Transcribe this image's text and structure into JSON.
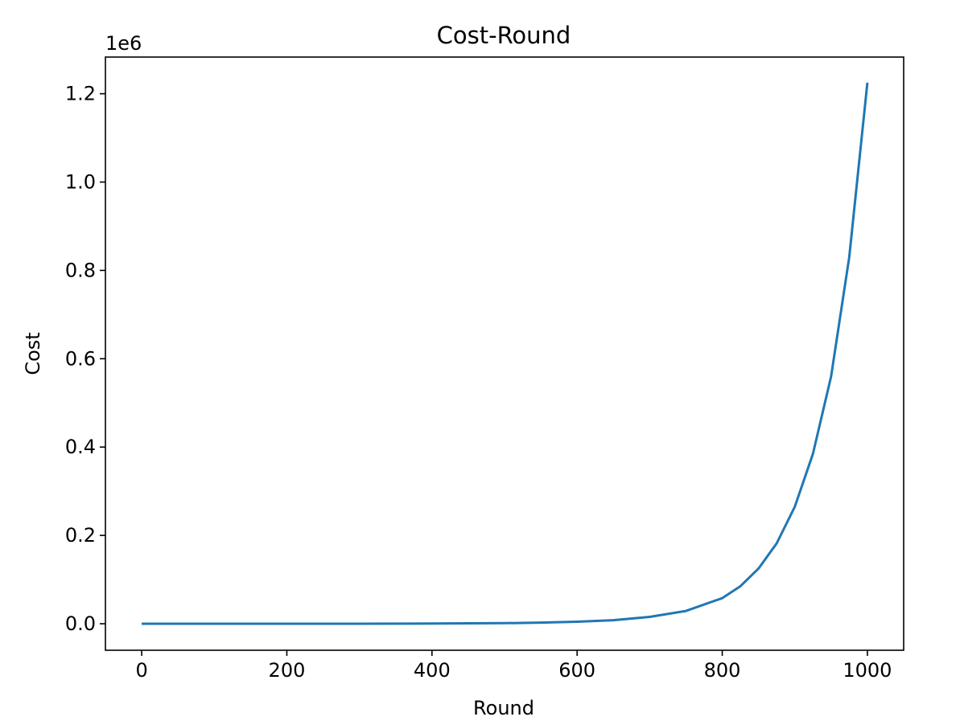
{
  "chart_data": {
    "type": "line",
    "title": "Cost-Round",
    "xlabel": "Round",
    "ylabel": "Cost",
    "y_offset_text": "1e6",
    "xlim": [
      -50,
      1050
    ],
    "ylim": [
      -0.06,
      1.283
    ],
    "x_ticks": [
      0,
      200,
      400,
      600,
      800,
      1000
    ],
    "x_tick_labels": [
      "0",
      "200",
      "400",
      "600",
      "800",
      "1000"
    ],
    "y_ticks": [
      0.0,
      0.2,
      0.4,
      0.6,
      0.8,
      1.0,
      1.2
    ],
    "y_tick_labels": [
      "0.0",
      "0.2",
      "0.4",
      "0.6",
      "0.8",
      "1.0",
      "1.2"
    ],
    "grid": false,
    "series": [
      {
        "color": "#1f77b4",
        "x": [
          0,
          100,
          200,
          300,
          400,
          500,
          550,
          600,
          650,
          700,
          750,
          800,
          825,
          850,
          875,
          900,
          925,
          950,
          975,
          1000
        ],
        "y": [
          0.0,
          0.0,
          0.0,
          0.0,
          0.0005,
          0.0013,
          0.0025,
          0.0045,
          0.008,
          0.0155,
          0.029,
          0.058,
          0.085,
          0.125,
          0.182,
          0.265,
          0.385,
          0.56,
          0.83,
          1.225
        ]
      }
    ]
  }
}
